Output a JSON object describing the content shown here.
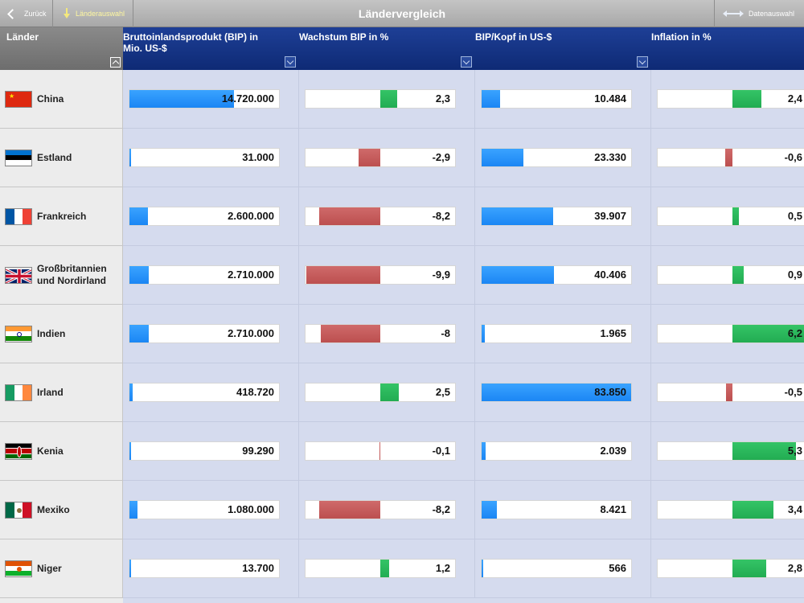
{
  "nav": {
    "back_label": "Zurück",
    "countries_label": "Länderauswahl",
    "title": "Ländervergleich",
    "data_label": "Datenauswahl"
  },
  "headers": {
    "country": "Länder",
    "columns": [
      "Bruttoinlandsprodukt (BIP) in Mio. US-$",
      "Wachstum BIP in %",
      "BIP/Kopf in US-$",
      "Inflation in %"
    ]
  },
  "colors": {
    "header_blue": "#0e2a75",
    "bar_blue": "#1b86f4",
    "bar_red": "#bc4f4f",
    "bar_green": "#22ac52"
  },
  "rows": [
    {
      "country": "China",
      "flag": "china-flag",
      "gdp": "14.720.000",
      "gdp_num": 14720000,
      "growth": "2,3",
      "growth_num": 2.3,
      "gdp_pc": "10.484",
      "gdp_pc_num": 10484,
      "inflation": "2,4",
      "inflation_num": 2.4
    },
    {
      "country": "Estland",
      "flag": "estonia-flag",
      "gdp": "31.000",
      "gdp_num": 31000,
      "growth": "-2,9",
      "growth_num": -2.9,
      "gdp_pc": "23.330",
      "gdp_pc_num": 23330,
      "inflation": "-0,6",
      "inflation_num": -0.6
    },
    {
      "country": "Frankreich",
      "flag": "france-flag",
      "gdp": "2.600.000",
      "gdp_num": 2600000,
      "growth": "-8,2",
      "growth_num": -8.2,
      "gdp_pc": "39.907",
      "gdp_pc_num": 39907,
      "inflation": "0,5",
      "inflation_num": 0.5
    },
    {
      "country": "Großbritannien und Nordirland",
      "flag": "uk-flag",
      "gdp": "2.710.000",
      "gdp_num": 2710000,
      "growth": "-9,9",
      "growth_num": -9.9,
      "gdp_pc": "40.406",
      "gdp_pc_num": 40406,
      "inflation": "0,9",
      "inflation_num": 0.9
    },
    {
      "country": "Indien",
      "flag": "india-flag",
      "gdp": "2.710.000",
      "gdp_num": 2710000,
      "growth": "-8",
      "growth_num": -8,
      "gdp_pc": "1.965",
      "gdp_pc_num": 1965,
      "inflation": "6,2",
      "inflation_num": 6.2
    },
    {
      "country": "Irland",
      "flag": "ireland-flag",
      "gdp": "418.720",
      "gdp_num": 418720,
      "growth": "2,5",
      "growth_num": 2.5,
      "gdp_pc": "83.850",
      "gdp_pc_num": 83850,
      "inflation": "-0,5",
      "inflation_num": -0.5
    },
    {
      "country": "Kenia",
      "flag": "kenya-flag",
      "gdp": "99.290",
      "gdp_num": 99290,
      "growth": "-0,1",
      "growth_num": -0.1,
      "gdp_pc": "2.039",
      "gdp_pc_num": 2039,
      "inflation": "5,3",
      "inflation_num": 5.3
    },
    {
      "country": "Mexiko",
      "flag": "mexico-flag",
      "gdp": "1.080.000",
      "gdp_num": 1080000,
      "growth": "-8,2",
      "growth_num": -8.2,
      "gdp_pc": "8.421",
      "gdp_pc_num": 8421,
      "inflation": "3,4",
      "inflation_num": 3.4
    },
    {
      "country": "Niger",
      "flag": "niger-flag",
      "gdp": "13.700",
      "gdp_num": 13700,
      "growth": "1,2",
      "growth_num": 1.2,
      "gdp_pc": "566",
      "gdp_pc_num": 566,
      "inflation": "2,8",
      "inflation_num": 2.8
    }
  ]
}
